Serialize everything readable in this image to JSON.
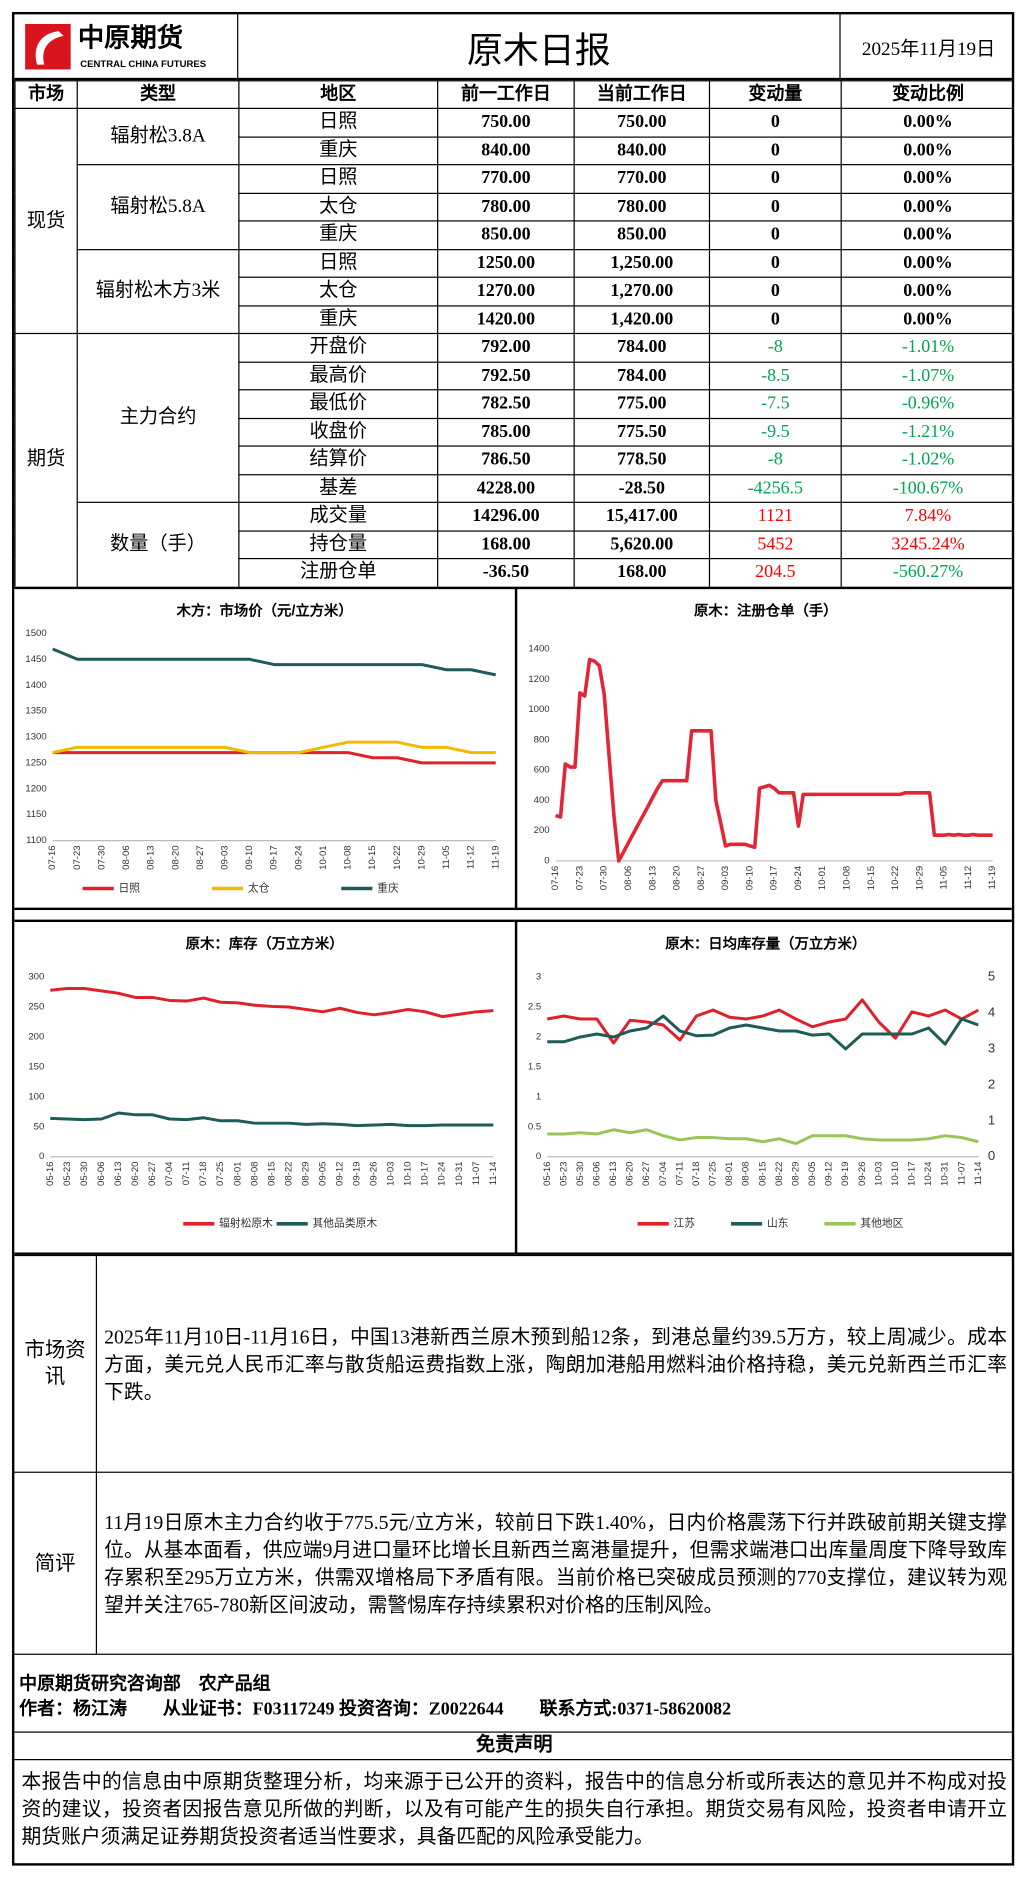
{
  "header": {
    "logo_name": "中原期货",
    "logo_en": "CENTRAL CHINA FUTURES",
    "title": "原木日报",
    "date": "2025年11月19日"
  },
  "table": {
    "up_color": "#ff0000",
    "down_color": "#00a651",
    "headers": [
      "市场",
      "类型",
      "地区",
      "前一工作日",
      "当前工作日",
      "变动量",
      "变动比例"
    ],
    "groups": [
      {
        "market": "现货",
        "types": [
          {
            "name": "辐射松3.8A",
            "rows": [
              [
                "日照",
                "750.00",
                "750.00",
                "0",
                "0.00%"
              ],
              [
                "重庆",
                "840.00",
                "840.00",
                "0",
                "0.00%"
              ]
            ]
          },
          {
            "name": "辐射松5.8A",
            "rows": [
              [
                "日照",
                "770.00",
                "770.00",
                "0",
                "0.00%"
              ],
              [
                "太仓",
                "780.00",
                "780.00",
                "0",
                "0.00%"
              ],
              [
                "重庆",
                "850.00",
                "850.00",
                "0",
                "0.00%"
              ]
            ]
          },
          {
            "name": "辐射松木方3米",
            "rows": [
              [
                "日照",
                "1250.00",
                "1,250.00",
                "0",
                "0.00%"
              ],
              [
                "太仓",
                "1270.00",
                "1,270.00",
                "0",
                "0.00%"
              ],
              [
                "重庆",
                "1420.00",
                "1,420.00",
                "0",
                "0.00%"
              ]
            ]
          }
        ]
      },
      {
        "market": "期货",
        "types": [
          {
            "name": "主力合约",
            "rows": [
              [
                "开盘价",
                "792.00",
                "784.00",
                "-8",
                "-1.01%"
              ],
              [
                "最高价",
                "792.50",
                "784.00",
                "-8.5",
                "-1.07%"
              ],
              [
                "最低价",
                "782.50",
                "775.00",
                "-7.5",
                "-0.96%"
              ],
              [
                "收盘价",
                "785.00",
                "775.50",
                "-9.5",
                "-1.21%"
              ],
              [
                "结算价",
                "786.50",
                "778.50",
                "-8",
                "-1.02%"
              ],
              [
                "基差",
                "4228.00",
                "-28.50",
                "-4256.5",
                "-100.67%"
              ]
            ]
          },
          {
            "name": "数量（手）",
            "rows": [
              [
                "成交量",
                "14296.00",
                "15,417.00",
                "1121",
                "7.84%"
              ],
              [
                "持仓量",
                "168.00",
                "5,620.00",
                "5452",
                "3245.24%"
              ],
              [
                "注册仓单",
                "-36.50",
                "168.00",
                "204.5",
                "-560.27%"
              ]
            ]
          }
        ]
      }
    ]
  },
  "chart_data": [
    {
      "type": "line",
      "title": "木方：市场价（元/立方米）",
      "legend": "bottom",
      "categories": [
        "07-16",
        "07-23",
        "07-30",
        "08-06",
        "08-13",
        "08-20",
        "08-27",
        "09-03",
        "09-10",
        "09-17",
        "09-24",
        "10-01",
        "10-08",
        "10-15",
        "10-22",
        "10-29",
        "11-05",
        "11-12",
        "11-19"
      ],
      "ylim": [
        1100,
        1500
      ],
      "yticks": [
        1100,
        1150,
        1200,
        1250,
        1300,
        1350,
        1400,
        1450,
        1500
      ],
      "series": [
        {
          "name": "日照",
          "color": "#e0202a",
          "values": [
            1270,
            1270,
            1270,
            1270,
            1270,
            1270,
            1270,
            1270,
            1270,
            1270,
            1270,
            1270,
            1270,
            1260,
            1260,
            1250,
            1250,
            1250,
            1250
          ]
        },
        {
          "name": "太仓",
          "color": "#f5b800",
          "values": [
            1270,
            1280,
            1280,
            1280,
            1280,
            1280,
            1280,
            1280,
            1270,
            1270,
            1270,
            1280,
            1290,
            1290,
            1290,
            1280,
            1280,
            1270,
            1270
          ]
        },
        {
          "name": "重庆",
          "color": "#1e5c58",
          "values": [
            1470,
            1450,
            1450,
            1450,
            1450,
            1450,
            1450,
            1450,
            1450,
            1440,
            1440,
            1440,
            1440,
            1440,
            1440,
            1440,
            1430,
            1430,
            1420
          ]
        }
      ]
    },
    {
      "type": "line",
      "title": "原木：注册仓单（手）",
      "categories": [
        "07-16",
        null,
        null,
        null,
        null,
        "07-23",
        null,
        null,
        null,
        null,
        "07-30",
        null,
        null,
        null,
        null,
        "08-06",
        null,
        null,
        null,
        null,
        "08-13",
        null,
        null,
        null,
        null,
        "08-20",
        null,
        null,
        null,
        null,
        "08-27",
        null,
        null,
        null,
        null,
        "09-03",
        null,
        null,
        null,
        null,
        "09-10",
        null,
        null,
        null,
        null,
        "09-17",
        null,
        null,
        null,
        null,
        "09-24",
        null,
        null,
        null,
        null,
        "10-01",
        null,
        null,
        null,
        null,
        "10-08",
        null,
        null,
        null,
        null,
        "10-15",
        null,
        null,
        null,
        null,
        "10-22",
        null,
        null,
        null,
        null,
        "10-29",
        null,
        null,
        null,
        null,
        "11-05",
        null,
        null,
        null,
        null,
        "11-12",
        null,
        null,
        null,
        null,
        "11-19"
      ],
      "ylim": [
        0,
        1400
      ],
      "yticks": [
        0,
        200,
        400,
        600,
        800,
        1000,
        1200,
        1400
      ],
      "series": [
        {
          "color": "#e32636",
          "values": [
            300,
            290,
            640,
            620,
            620,
            1110,
            1090,
            1330,
            1320,
            1290,
            1100,
            700,
            300,
            0,
            60,
            120,
            180,
            240,
            300,
            360,
            420,
            480,
            530,
            530,
            530,
            530,
            530,
            530,
            860,
            860,
            860,
            860,
            860,
            400,
            250,
            100,
            110,
            110,
            110,
            110,
            100,
            90,
            480,
            490,
            500,
            480,
            450,
            450,
            450,
            450,
            230,
            440,
            440,
            440,
            440,
            440,
            440,
            440,
            440,
            440,
            440,
            440,
            440,
            440,
            440,
            440,
            440,
            440,
            440,
            440,
            440,
            440,
            450,
            450,
            450,
            450,
            450,
            450,
            170,
            170,
            170,
            175,
            170,
            175,
            170,
            170,
            175,
            170,
            170,
            170,
            170
          ]
        }
      ]
    },
    {
      "type": "line",
      "title": "原木：库存（万立方米）",
      "legend": "bottom",
      "categories": [
        "05-16",
        "05-23",
        "05-30",
        "06-06",
        "06-13",
        "06-20",
        "06-27",
        "07-04",
        "07-11",
        "07-18",
        "07-25",
        "08-01",
        "08-08",
        "08-15",
        "08-22",
        "08-29",
        "09-05",
        "09-12",
        "09-19",
        "09-26",
        "10-03",
        "10-10",
        "10-17",
        "10-24",
        "10-31",
        "11-07",
        "11-14"
      ],
      "ylim": [
        0,
        300
      ],
      "yticks": [
        0,
        50,
        100,
        150,
        200,
        250,
        300
      ],
      "series": [
        {
          "name": "辐射松原木",
          "color": "#e0202a",
          "values": [
            278,
            281,
            281,
            277,
            273,
            266,
            266,
            261,
            260,
            265,
            258,
            257,
            253,
            251,
            250,
            246,
            242,
            248,
            241,
            237,
            241,
            246,
            242,
            234,
            238,
            242,
            244
          ]
        },
        {
          "name": "其他品类原木",
          "color": "#1e5c58",
          "values": [
            64,
            63,
            62,
            63,
            73,
            70,
            70,
            63,
            62,
            65,
            60,
            60,
            56,
            56,
            56,
            54,
            55,
            54,
            52,
            53,
            54,
            52,
            52,
            53,
            53,
            53,
            53
          ]
        }
      ]
    },
    {
      "type": "line",
      "title": "原木：日均库存量（万立方米）",
      "legend": "bottom",
      "categories": [
        "05-16",
        "05-23",
        "05-30",
        "06-06",
        "06-13",
        "06-20",
        "06-27",
        "07-04",
        "07-11",
        "07-18",
        "07-25",
        "08-01",
        "08-08",
        "08-15",
        "08-22",
        "08-29",
        "09-05",
        "09-12",
        "09-19",
        "09-26",
        "10-03",
        "10-10",
        "10-17",
        "10-24",
        "10-31",
        "11-07",
        "11-14"
      ],
      "ylim": [
        0,
        3
      ],
      "yticks": [
        0,
        0.5,
        1,
        1.5,
        2,
        2.5,
        3
      ],
      "y2lim": [
        0,
        5
      ],
      "y2ticks": [
        0,
        1,
        2,
        3,
        4,
        5
      ],
      "series": [
        {
          "name": "江苏",
          "color": "#e0202a",
          "values": [
            2.3,
            2.35,
            2.3,
            2.3,
            1.9,
            2.28,
            2.25,
            2.2,
            1.95,
            2.35,
            2.45,
            2.33,
            2.3,
            2.35,
            2.45,
            2.3,
            2.17,
            2.25,
            2.3,
            2.62,
            2.25,
            1.98,
            2.42,
            2.35,
            2.45,
            2.3,
            2.45
          ]
        },
        {
          "name": "山东",
          "color": "#1e5c58",
          "values": [
            1.92,
            1.92,
            2.0,
            2.05,
            2.0,
            2.1,
            2.15,
            2.35,
            2.1,
            2.02,
            2.03,
            2.15,
            2.2,
            2.15,
            2.1,
            2.1,
            2.03,
            2.05,
            1.8,
            2.05,
            2.05,
            2.05,
            2.05,
            2.15,
            1.88,
            2.3,
            2.2
          ]
        },
        {
          "name": "其他地区",
          "color": "#9bc45a",
          "values": [
            0.38,
            0.38,
            0.4,
            0.38,
            0.45,
            0.4,
            0.45,
            0.35,
            0.28,
            0.32,
            0.32,
            0.3,
            0.3,
            0.25,
            0.3,
            0.22,
            0.35,
            0.35,
            0.35,
            0.3,
            0.28,
            0.28,
            0.28,
            0.3,
            0.35,
            0.32,
            0.25
          ]
        }
      ]
    }
  ],
  "news": {
    "label": "市场资讯",
    "text": "2025年11月10日-11月16日，中国13港新西兰原木预到船12条，到港总量约39.5万方，较上周减少。成本方面，美元兑人民币汇率与散货船运费指数上涨，陶朗加港船用燃料油价格持稳，美元兑新西兰币汇率下跌。"
  },
  "comment": {
    "label": "简评",
    "text": "11月19日原木主力合约收于775.5元/立方米，较前日下跌1.40%，日内价格震荡下行并跌破前期关键支撑位。从基本面看，供应端9月进口量环比增长且新西兰离港量提升，但需求端港口出库量周度下降导致库存累积至295万立方米，供需双增格局下矛盾有限。当前价格已突破成员预测的770支撑位，建议转为观望并关注765-780新区间波动，需警惕库存持续累积对价格的压制风险。"
  },
  "footer": {
    "dept": "中原期货研究咨询部　农产品组",
    "author": "作者：杨江涛　　从业证书：F03117249 投资咨询：Z0022644　　联系方式:0371-58620082"
  },
  "disclaimer": {
    "title": "免责声明",
    "text": "本报告中的信息由中原期货整理分析，均来源于已公开的资料，报告中的信息分析或所表达的意见并不构成对投资的建议，投资者因报告意见所做的判断，以及有可能产生的损失自行承担。期货交易有风险，投资者申请开立期货账户须满足证券期货投资者适当性要求，具备匹配的风险承受能力。"
  }
}
